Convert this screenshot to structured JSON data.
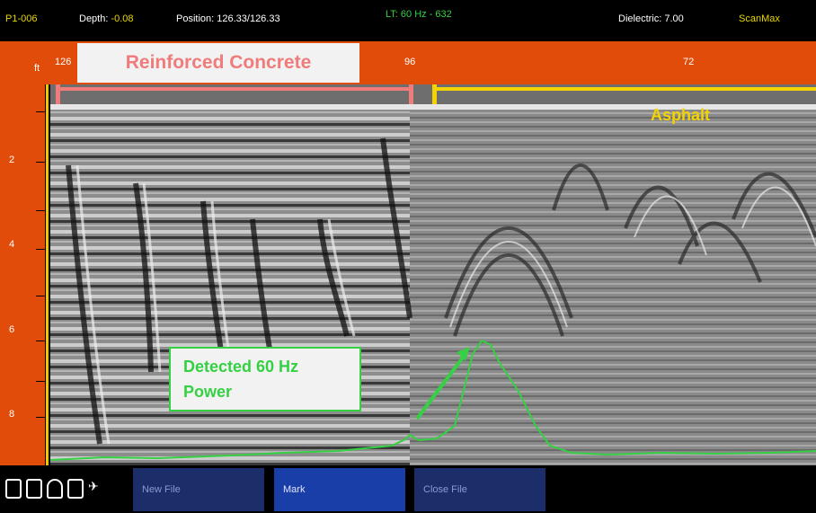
{
  "status": {
    "file": "P1-006",
    "depth": "Depth: -0.08",
    "position": "Position: 126.33/126.33",
    "lt": "LT: 60 Hz - 632",
    "dielectric": "Dielectric: 7.00",
    "brand": "ScanMax"
  },
  "ruler": {
    "unit": "ft",
    "left": "126",
    "mid": "96",
    "right": "72",
    "depth_ticks": [
      "2",
      "4",
      "6",
      "8"
    ]
  },
  "annotations": {
    "concrete": "Reinforced Concrete",
    "asphalt": "Asphalt",
    "detected_line1": "Detected 60 Hz",
    "detected_line2": "Power"
  },
  "buttons": {
    "new_file": "New File",
    "mark": "Mark",
    "close_file": "Close File"
  },
  "colors": {
    "accent": "#e14c0a",
    "concrete": "#f07b7b",
    "asphalt": "#f3d300",
    "power": "#35d043"
  }
}
